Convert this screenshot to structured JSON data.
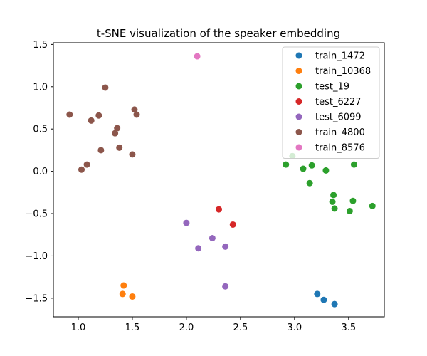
{
  "chart_data": {
    "type": "scatter",
    "title": "t-SNE visualization of the speaker embedding",
    "xlabel": "",
    "ylabel": "",
    "xlim": [
      0.77,
      3.83
    ],
    "ylim": [
      -1.72,
      1.52
    ],
    "xticks": [
      1.0,
      1.5,
      2.0,
      2.5,
      3.0,
      3.5
    ],
    "xtick_labels": [
      "1.0",
      "1.5",
      "2.0",
      "2.5",
      "3.0",
      "3.5"
    ],
    "yticks": [
      -1.5,
      -1.0,
      -0.5,
      0.0,
      0.5,
      1.0,
      1.5
    ],
    "ytick_labels": [
      "−1.5",
      "−1.0",
      "−0.5",
      "0.0",
      "0.5",
      "1.0",
      "1.5"
    ],
    "grid": false,
    "legend_position": "top-right",
    "series": [
      {
        "name": "train_1472",
        "color": "#1f77b4",
        "points": [
          [
            3.21,
            -1.45
          ],
          [
            3.27,
            -1.52
          ],
          [
            3.37,
            -1.57
          ]
        ]
      },
      {
        "name": "train_10368",
        "color": "#ff7f0e",
        "points": [
          [
            1.42,
            -1.35
          ],
          [
            1.41,
            -1.45
          ],
          [
            1.5,
            -1.48
          ]
        ]
      },
      {
        "name": "test_19",
        "color": "#2ca02c",
        "points": [
          [
            2.92,
            0.08
          ],
          [
            2.98,
            0.18
          ],
          [
            3.08,
            0.03
          ],
          [
            3.16,
            0.07
          ],
          [
            3.29,
            0.01
          ],
          [
            3.55,
            0.08
          ],
          [
            3.14,
            -0.14
          ],
          [
            3.36,
            -0.28
          ],
          [
            3.35,
            -0.36
          ],
          [
            3.37,
            -0.44
          ],
          [
            3.54,
            -0.35
          ],
          [
            3.51,
            -0.47
          ],
          [
            3.72,
            -0.41
          ]
        ]
      },
      {
        "name": "test_6227",
        "color": "#d62728",
        "points": [
          [
            2.3,
            -0.45
          ],
          [
            2.43,
            -0.63
          ]
        ]
      },
      {
        "name": "test_6099",
        "color": "#9467bd",
        "points": [
          [
            2.0,
            -0.61
          ],
          [
            2.11,
            -0.91
          ],
          [
            2.24,
            -0.79
          ],
          [
            2.36,
            -0.89
          ],
          [
            2.36,
            -1.36
          ]
        ]
      },
      {
        "name": "train_4800",
        "color": "#8c564b",
        "points": [
          [
            0.92,
            0.67
          ],
          [
            1.25,
            0.99
          ],
          [
            1.19,
            0.66
          ],
          [
            1.12,
            0.6
          ],
          [
            1.36,
            0.51
          ],
          [
            1.34,
            0.45
          ],
          [
            1.52,
            0.73
          ],
          [
            1.54,
            0.67
          ],
          [
            1.38,
            0.28
          ],
          [
            1.5,
            0.2
          ],
          [
            1.21,
            0.25
          ],
          [
            1.08,
            0.08
          ],
          [
            1.03,
            0.02
          ]
        ]
      },
      {
        "name": "train_8576",
        "color": "#e377c2",
        "points": [
          [
            2.1,
            1.36
          ]
        ]
      }
    ]
  }
}
